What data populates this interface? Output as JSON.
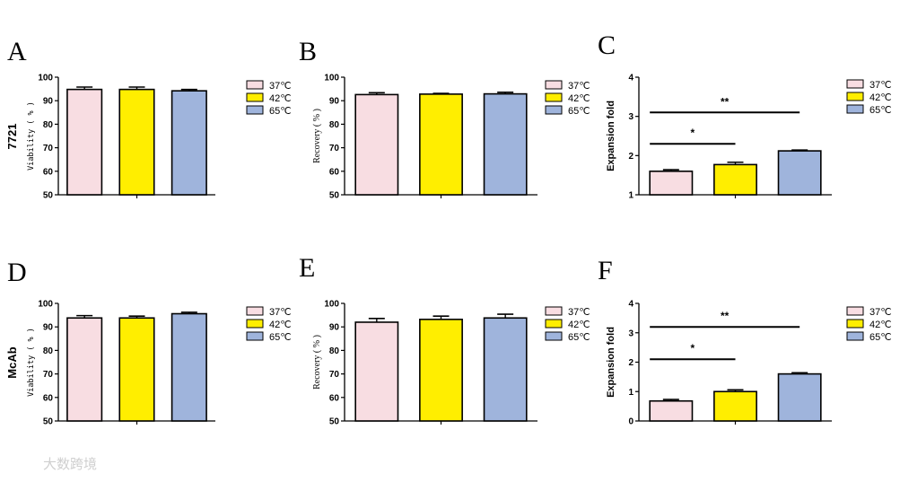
{
  "row_labels": [
    "7721",
    "McAb"
  ],
  "watermark": "大数跨境",
  "chart_data": [
    {
      "type": "bar",
      "panel": "A",
      "row": "7721",
      "ylabel": "Viability ( % )",
      "categories": [
        "37℃",
        "42℃",
        "65℃"
      ],
      "values": [
        94.8,
        94.8,
        94.2
      ],
      "errors": [
        1.0,
        1.0,
        0.6
      ],
      "ylim": [
        50,
        100
      ],
      "yticks": [
        50,
        60,
        70,
        80,
        90,
        100
      ],
      "colors": [
        "#f8dde2",
        "#ffee00",
        "#9fb4dc"
      ],
      "legend": [
        "37℃",
        "42℃",
        "65℃"
      ],
      "significance": []
    },
    {
      "type": "bar",
      "panel": "B",
      "row": "7721",
      "ylabel": "Recovery ( % )",
      "categories": [
        "37℃",
        "42℃",
        "65℃"
      ],
      "values": [
        92.6,
        92.8,
        92.9
      ],
      "errors": [
        0.8,
        0.3,
        0.7
      ],
      "ylim": [
        50,
        100
      ],
      "yticks": [
        50,
        60,
        70,
        80,
        90,
        100
      ],
      "colors": [
        "#f8dde2",
        "#ffee00",
        "#9fb4dc"
      ],
      "legend": [
        "37℃",
        "42℃",
        "65℃"
      ],
      "significance": []
    },
    {
      "type": "bar",
      "panel": "C",
      "row": "7721",
      "ylabel": "Expansion fold",
      "categories": [
        "37℃",
        "42℃",
        "65℃"
      ],
      "values": [
        1.6,
        1.77,
        2.12
      ],
      "errors": [
        0.04,
        0.06,
        0.02
      ],
      "ylim": [
        1,
        4
      ],
      "yticks": [
        1,
        2,
        3,
        4
      ],
      "colors": [
        "#f8dde2",
        "#ffee00",
        "#9fb4dc"
      ],
      "legend": [
        "37℃",
        "42℃",
        "65℃"
      ],
      "significance": [
        {
          "label": "*",
          "from": 0,
          "to": 1,
          "y": 2.3
        },
        {
          "label": "**",
          "from": 0,
          "to": 2,
          "y": 3.1
        }
      ]
    },
    {
      "type": "bar",
      "panel": "D",
      "row": "McAb",
      "ylabel": "Viability ( % )",
      "categories": [
        "37℃",
        "42℃",
        "65℃"
      ],
      "values": [
        93.8,
        93.8,
        95.6
      ],
      "errors": [
        1.0,
        0.8,
        0.6
      ],
      "ylim": [
        50,
        100
      ],
      "yticks": [
        50,
        60,
        70,
        80,
        90,
        100
      ],
      "colors": [
        "#f8dde2",
        "#ffee00",
        "#9fb4dc"
      ],
      "legend": [
        "37℃",
        "42℃",
        "65℃"
      ],
      "significance": []
    },
    {
      "type": "bar",
      "panel": "E",
      "row": "McAb",
      "ylabel": "Recovery ( % )",
      "categories": [
        "37℃",
        "42℃",
        "65℃"
      ],
      "values": [
        92.0,
        93.2,
        93.8
      ],
      "errors": [
        1.6,
        1.4,
        1.6
      ],
      "ylim": [
        50,
        100
      ],
      "yticks": [
        50,
        60,
        70,
        80,
        90,
        100
      ],
      "colors": [
        "#f8dde2",
        "#ffee00",
        "#9fb4dc"
      ],
      "legend": [
        "37℃",
        "42℃",
        "65℃"
      ],
      "significance": []
    },
    {
      "type": "bar",
      "panel": "F",
      "row": "McAb",
      "ylabel": "Expansion fold",
      "categories": [
        "37℃",
        "42℃",
        "65℃"
      ],
      "values": [
        0.68,
        1.0,
        1.6
      ],
      "errors": [
        0.05,
        0.06,
        0.04
      ],
      "ylim": [
        0,
        4
      ],
      "yticks": [
        0,
        1,
        2,
        3,
        4
      ],
      "colors": [
        "#f8dde2",
        "#ffee00",
        "#9fb4dc"
      ],
      "legend": [
        "37℃",
        "42℃",
        "65℃"
      ],
      "significance": [
        {
          "label": "*",
          "from": 0,
          "to": 1,
          "y": 2.1
        },
        {
          "label": "**",
          "from": 0,
          "to": 2,
          "y": 3.2
        }
      ]
    }
  ]
}
